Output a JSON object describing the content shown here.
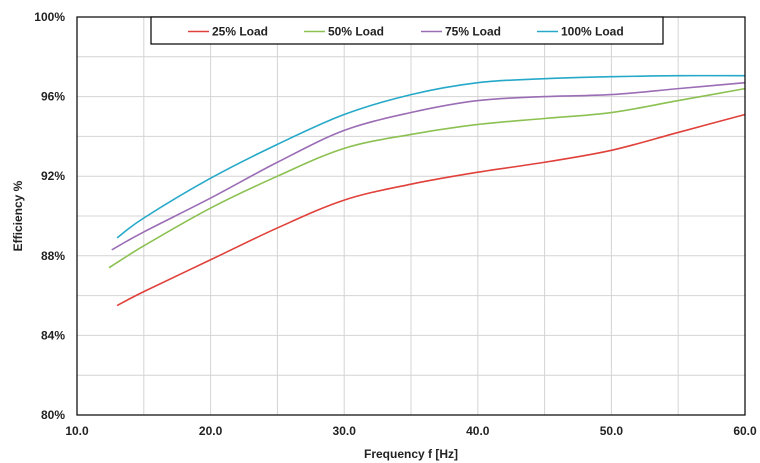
{
  "chart_data": {
    "type": "line",
    "xlabel": "Frequency f [Hz]",
    "ylabel": "Efficiency %",
    "xlim": [
      10,
      60
    ],
    "ylim": [
      80,
      100
    ],
    "x_ticks": [
      10,
      20,
      30,
      40,
      50,
      60
    ],
    "x_tick_labels": [
      "10.0",
      "20.0",
      "30.0",
      "40.0",
      "50.0",
      "60.0"
    ],
    "y_ticks": [
      80,
      84,
      88,
      92,
      96,
      100
    ],
    "y_tick_labels": [
      "80%",
      "84%",
      "88%",
      "92%",
      "96%",
      "100%"
    ],
    "grid": true,
    "legend_position": "top",
    "series": [
      {
        "name": "25% Load",
        "color": "#e0413b",
        "x": [
          13,
          15,
          20,
          25,
          30,
          35,
          40,
          45,
          50,
          55,
          60
        ],
        "y": [
          85.5,
          86.2,
          87.8,
          89.4,
          90.8,
          91.6,
          92.2,
          92.7,
          93.3,
          94.2,
          95.1
        ]
      },
      {
        "name": "50% Load",
        "color": "#8cc152",
        "x": [
          12.4,
          15,
          20,
          25,
          30,
          35,
          40,
          45,
          50,
          55,
          60
        ],
        "y": [
          87.4,
          88.5,
          90.4,
          92.0,
          93.4,
          94.1,
          94.6,
          94.9,
          95.2,
          95.8,
          96.4
        ]
      },
      {
        "name": "75% Load",
        "color": "#9b6db5",
        "x": [
          12.6,
          15,
          20,
          25,
          30,
          35,
          40,
          45,
          50,
          55,
          60
        ],
        "y": [
          88.3,
          89.2,
          90.9,
          92.7,
          94.3,
          95.2,
          95.8,
          96.0,
          96.1,
          96.4,
          96.7
        ]
      },
      {
        "name": "100% Load",
        "color": "#26a9c9",
        "x": [
          13,
          15,
          20,
          25,
          30,
          35,
          40,
          45,
          50,
          55,
          60
        ],
        "y": [
          88.9,
          89.9,
          91.9,
          93.6,
          95.1,
          96.1,
          96.7,
          96.9,
          97.0,
          97.05,
          97.05
        ]
      }
    ]
  }
}
